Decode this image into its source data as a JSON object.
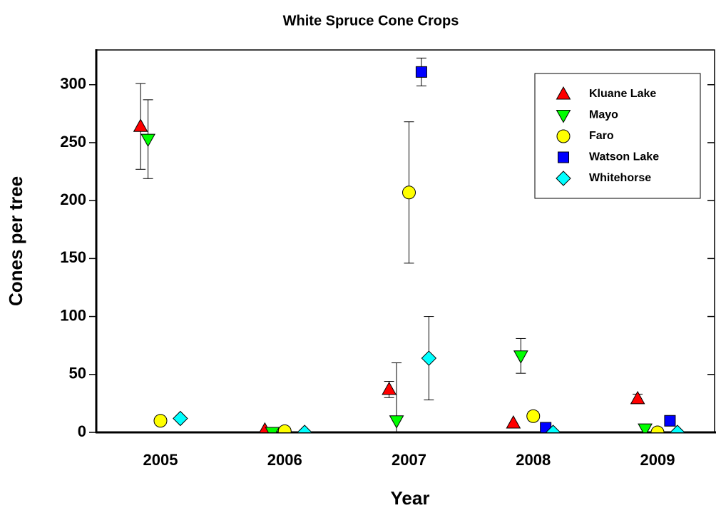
{
  "chart_data": {
    "type": "scatter",
    "title": "White Spruce Cone Crops",
    "x_label": "Year",
    "y_label": "Cones per tree",
    "categories": [
      "2005",
      "2006",
      "2007",
      "2008",
      "2009"
    ],
    "ylim": [
      0,
      330
    ],
    "yticks": [
      0,
      50,
      100,
      150,
      200,
      250,
      300
    ],
    "legend": "top-right",
    "series": [
      {
        "name": "Kluane Lake",
        "color": "#ff0000",
        "marker": "triangle-up",
        "values": [
          264,
          2,
          37,
          8,
          29
        ],
        "errors": [
          37,
          null,
          7,
          null,
          4
        ]
      },
      {
        "name": "Mayo",
        "color": "#00ff00",
        "marker": "triangle-down",
        "values": [
          253,
          0,
          10,
          66,
          3
        ],
        "errors": [
          34,
          null,
          50,
          15,
          null
        ]
      },
      {
        "name": "Faro",
        "color": "#ffff00",
        "marker": "circle",
        "values": [
          10,
          1,
          207,
          14,
          0
        ],
        "errors": [
          null,
          null,
          61,
          4,
          null
        ]
      },
      {
        "name": "Watson Lake",
        "color": "#0000ff",
        "marker": "square",
        "values": [
          null,
          null,
          311,
          4,
          10
        ],
        "errors": [
          null,
          null,
          12,
          null,
          null
        ]
      },
      {
        "name": "Whitehorse",
        "color": "#00ffff",
        "marker": "diamond",
        "values": [
          12,
          0,
          64,
          0,
          0
        ],
        "errors": [
          null,
          null,
          36,
          null,
          null
        ]
      }
    ]
  }
}
